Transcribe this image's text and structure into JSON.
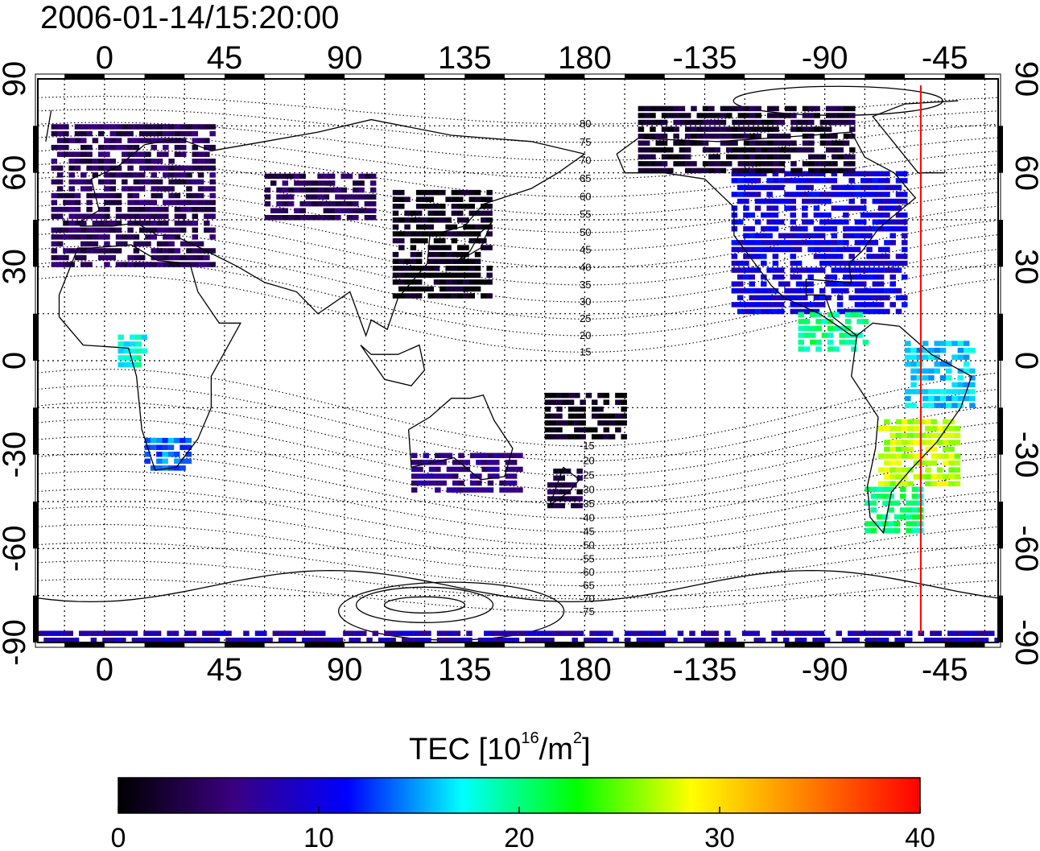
{
  "title": "2006-01-14/15:20:00",
  "colorbar": {
    "label_prefix": "TEC  [10",
    "label_exp1": "16",
    "label_mid": "/m",
    "label_exp2": "2",
    "label_suffix": "]",
    "min": 0,
    "max": 40,
    "ticks": [
      0,
      10,
      20,
      30,
      40
    ],
    "stops": [
      "#000000",
      "#3a0080",
      "#0000ff",
      "#00ffff",
      "#00ff00",
      "#ffff00",
      "#ff8000",
      "#ff0000"
    ]
  },
  "map": {
    "lon_ticks": [
      0,
      45,
      90,
      135,
      180,
      -135,
      -90,
      -45
    ],
    "lat_ticks": [
      90,
      60,
      30,
      0,
      -30,
      -60,
      -90
    ],
    "lon_range": [
      -25,
      335
    ],
    "lat_range": [
      -90,
      90
    ],
    "terminator_lon": -54,
    "terminator_color": "#ff0000",
    "contour_labels": [
      "80",
      "75",
      "70",
      "65",
      "60",
      "55",
      "50",
      "45",
      "40",
      "35",
      "30",
      "25",
      "20",
      "15",
      "-15",
      "-20",
      "-25",
      "-30",
      "-35",
      "-40",
      "-45",
      "-50",
      "-55",
      "-60",
      "-65",
      "-70",
      "-75"
    ],
    "patches": [
      {
        "name": "europe",
        "lon": [
          -20,
          40
        ],
        "lat": [
          30,
          75
        ],
        "tec": 4
      },
      {
        "name": "north-america",
        "lon": [
          -125,
          -60
        ],
        "lat": [
          15,
          60
        ],
        "tec": 10
      },
      {
        "name": "canada-arctic",
        "lon": [
          -160,
          -80
        ],
        "lat": [
          60,
          80
        ],
        "tec": 2
      },
      {
        "name": "east-asia",
        "lon": [
          108,
          145
        ],
        "lat": [
          20,
          55
        ],
        "tec": 1
      },
      {
        "name": "central-america",
        "lon": [
          -100,
          -75
        ],
        "lat": [
          3,
          15
        ],
        "tec": 20
      },
      {
        "name": "south-america-north",
        "lon": [
          -60,
          -35
        ],
        "lat": [
          -15,
          5
        ],
        "tec": 16
      },
      {
        "name": "south-america-mid",
        "lon": [
          -70,
          -40
        ],
        "lat": [
          -40,
          -20
        ],
        "tec": 27
      },
      {
        "name": "patagonia",
        "lon": [
          -75,
          -55
        ],
        "lat": [
          -55,
          -40
        ],
        "tec": 20
      },
      {
        "name": "south-africa",
        "lon": [
          15,
          32
        ],
        "lat": [
          -35,
          -25
        ],
        "tec": 14
      },
      {
        "name": "west-africa",
        "lon": [
          5,
          15
        ],
        "lat": [
          -2,
          8
        ],
        "tec": 18
      },
      {
        "name": "australia",
        "lon": [
          115,
          155
        ],
        "lat": [
          -42,
          -30
        ],
        "tec": 6
      },
      {
        "name": "new-zealand",
        "lon": [
          166,
          178
        ],
        "lat": [
          -47,
          -35
        ],
        "tec": 3
      },
      {
        "name": "pacific-south",
        "lon": [
          165,
          195
        ],
        "lat": [
          -25,
          -10
        ],
        "tec": 1
      },
      {
        "name": "siberia",
        "lon": [
          60,
          100
        ],
        "lat": [
          45,
          60
        ],
        "tec": 4
      },
      {
        "name": "antarctic-strip",
        "lon": [
          -25,
          335
        ],
        "lat": [
          -90,
          -86
        ],
        "tec": 8
      }
    ]
  }
}
